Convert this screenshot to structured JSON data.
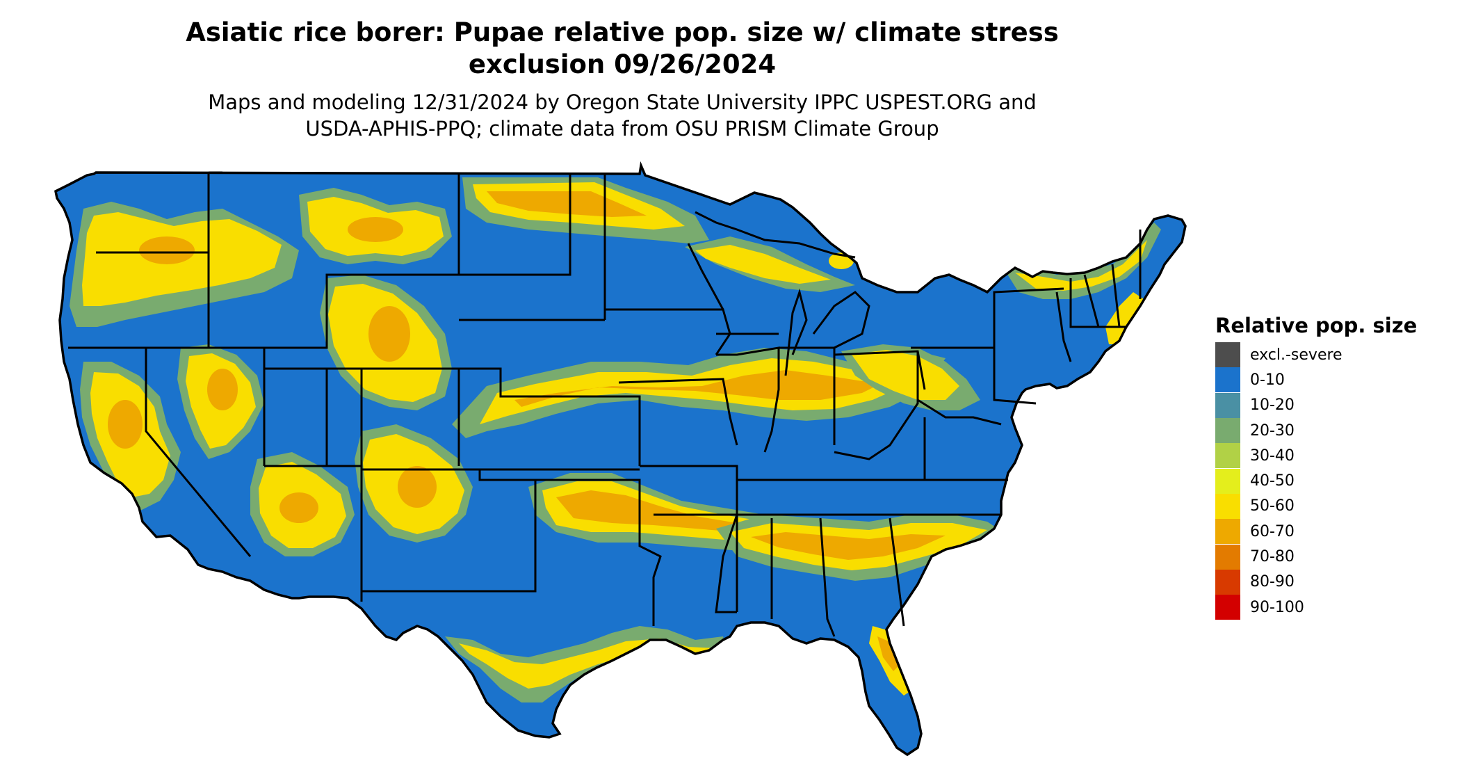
{
  "title_line1": "Asiatic rice borer: Pupae relative pop. size w/ climate stress",
  "title_line2": "exclusion 09/26/2024",
  "subtitle_line1": "Maps and modeling 12/31/2024 by Oregon State University IPPC USPEST.ORG and",
  "subtitle_line2": "USDA-APHIS-PPQ; climate data from OSU PRISM Climate Group",
  "legend": {
    "title": "Relative pop. size",
    "items": [
      {
        "label": "excl.-severe",
        "color": "#4d4d4d"
      },
      {
        "label": "0-10",
        "color": "#1b73cc"
      },
      {
        "label": "10-20",
        "color": "#4a90a4"
      },
      {
        "label": "20-30",
        "color": "#79ab6f"
      },
      {
        "label": "30-40",
        "color": "#b1d146"
      },
      {
        "label": "40-50",
        "color": "#e4ee1c"
      },
      {
        "label": "50-60",
        "color": "#f9de00"
      },
      {
        "label": "60-70",
        "color": "#eea900"
      },
      {
        "label": "70-80",
        "color": "#e37b00"
      },
      {
        "label": "80-90",
        "color": "#d83a00"
      },
      {
        "label": "90-100",
        "color": "#d30000"
      }
    ]
  },
  "map_colors": {
    "base": "#1b73cc",
    "border": "#000000",
    "low_band": "#79ab6f",
    "mid_band": "#f9de00",
    "high_band": "#eea900"
  }
}
